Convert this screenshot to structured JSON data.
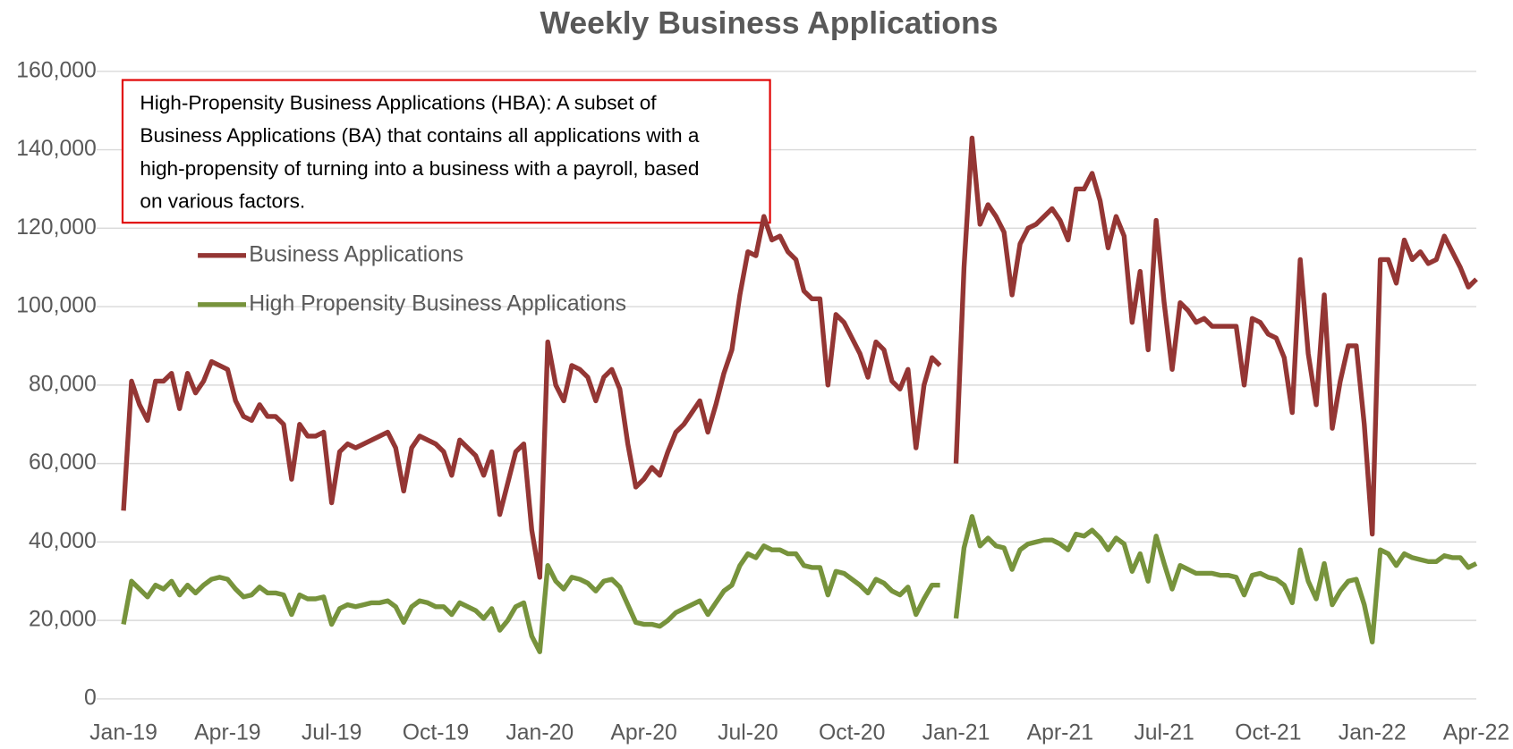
{
  "chart_data": {
    "type": "line",
    "title": "Weekly Business Applications",
    "annotation": [
      "High-Propensity Business Applications (HBA): A subset of",
      "Business Applications (BA) that contains all applications with a",
      "high-propensity of turning into a business with a payroll, based",
      "on various factors."
    ],
    "categories": [
      "Jan-19",
      null,
      null,
      null,
      null,
      null,
      null,
      null,
      null,
      null,
      null,
      null,
      null,
      "Apr-19",
      null,
      null,
      null,
      null,
      null,
      null,
      null,
      null,
      null,
      null,
      null,
      null,
      "Jul-19",
      null,
      null,
      null,
      null,
      null,
      null,
      null,
      null,
      null,
      null,
      null,
      null,
      "Oct-19",
      null,
      null,
      null,
      null,
      null,
      null,
      null,
      null,
      null,
      null,
      null,
      null,
      "Jan-20",
      null,
      null,
      null,
      null,
      null,
      null,
      null,
      null,
      null,
      null,
      null,
      null,
      "Apr-20",
      null,
      null,
      null,
      null,
      null,
      null,
      null,
      null,
      null,
      null,
      null,
      null,
      "Jul-20",
      null,
      null,
      null,
      null,
      null,
      null,
      null,
      null,
      null,
      null,
      null,
      null,
      "Oct-20",
      null,
      null,
      null,
      null,
      null,
      null,
      null,
      null,
      null,
      null,
      null,
      null,
      "Jan-21",
      null,
      null,
      null,
      null,
      null,
      null,
      null,
      null,
      null,
      null,
      null,
      null,
      "Apr-21",
      null,
      null,
      null,
      null,
      null,
      null,
      null,
      null,
      null,
      null,
      null,
      null,
      "Jul-21",
      null,
      null,
      null,
      null,
      null,
      null,
      null,
      null,
      null,
      null,
      null,
      null,
      "Oct-21",
      null,
      null,
      null,
      null,
      null,
      null,
      null,
      null,
      null,
      null,
      null,
      null,
      "Jan-22",
      null,
      null,
      null,
      null,
      null,
      null,
      null,
      null,
      null,
      null,
      null,
      null,
      "Apr-22"
    ],
    "series": [
      {
        "name": "Business Applications",
        "color": "#943634",
        "values": [
          48000,
          81000,
          75000,
          71000,
          81000,
          81000,
          83000,
          74000,
          83000,
          78000,
          81000,
          86000,
          85000,
          84000,
          76000,
          72000,
          71000,
          75000,
          72000,
          72000,
          70000,
          56000,
          70000,
          67000,
          67000,
          68000,
          50000,
          63000,
          65000,
          64000,
          65000,
          66000,
          67000,
          68000,
          64000,
          53000,
          64000,
          67000,
          66000,
          65000,
          63000,
          57000,
          66000,
          64000,
          62000,
          57000,
          63000,
          47000,
          55000,
          63000,
          65000,
          43000,
          31000,
          91000,
          80000,
          76000,
          85000,
          84000,
          82000,
          76000,
          82000,
          84000,
          79000,
          65000,
          54000,
          56000,
          59000,
          57000,
          63000,
          68000,
          70000,
          73000,
          76000,
          68000,
          75000,
          83000,
          89000,
          103000,
          114000,
          113000,
          123000,
          117000,
          118000,
          114000,
          112000,
          104000,
          102000,
          102000,
          80000,
          98000,
          96000,
          92000,
          88000,
          82000,
          91000,
          89000,
          81000,
          79000,
          84000,
          64000,
          80000,
          87000,
          85000,
          null,
          60000,
          110000,
          143000,
          121000,
          126000,
          123000,
          119000,
          103000,
          116000,
          120000,
          121000,
          123000,
          125000,
          122000,
          117000,
          130000,
          130000,
          134000,
          127000,
          115000,
          123000,
          118000,
          96000,
          109000,
          89000,
          122000,
          101000,
          84000,
          101000,
          99000,
          96000,
          97000,
          95000,
          95000,
          95000,
          95000,
          80000,
          97000,
          96000,
          93000,
          92000,
          87000,
          73000,
          112000,
          88000,
          75000,
          103000,
          69000,
          81000,
          90000,
          90000,
          70000,
          42000,
          112000,
          112000,
          106000,
          117000,
          112000,
          114000,
          111000,
          112000,
          118000,
          114000,
          110000,
          105000,
          107000
        ]
      },
      {
        "name": "High Propensity Business Applications",
        "color": "#77933c",
        "values": [
          19000,
          30000,
          28000,
          26000,
          29000,
          28000,
          30000,
          26500,
          29000,
          27000,
          29000,
          30500,
          31000,
          30500,
          28000,
          26000,
          26500,
          28500,
          27000,
          27000,
          26500,
          21500,
          26500,
          25500,
          25500,
          26000,
          19000,
          23000,
          24000,
          23500,
          24000,
          24500,
          24500,
          25000,
          23500,
          19500,
          23500,
          25000,
          24500,
          23500,
          23500,
          21500,
          24500,
          23500,
          22500,
          20500,
          23000,
          17500,
          20000,
          23500,
          24500,
          16000,
          12000,
          34000,
          30000,
          28000,
          31000,
          30500,
          29500,
          27500,
          30000,
          30500,
          28500,
          24000,
          19500,
          19000,
          19000,
          18500,
          20000,
          22000,
          23000,
          24000,
          25000,
          21500,
          24500,
          27500,
          29000,
          34000,
          37000,
          36000,
          39000,
          38000,
          38000,
          37000,
          37000,
          34000,
          33500,
          33500,
          26500,
          32500,
          32000,
          30500,
          29000,
          27000,
          30500,
          29500,
          27500,
          26500,
          28500,
          21500,
          25500,
          29000,
          29000,
          null,
          20500,
          38500,
          46500,
          39000,
          41000,
          39000,
          38500,
          33000,
          38000,
          39500,
          40000,
          40500,
          40500,
          39500,
          38000,
          42000,
          41500,
          43000,
          41000,
          38000,
          41000,
          39500,
          32500,
          37000,
          30000,
          41500,
          34500,
          28000,
          34000,
          33000,
          32000,
          32000,
          32000,
          31500,
          31500,
          31000,
          26500,
          31500,
          32000,
          31000,
          30500,
          29000,
          24500,
          38000,
          30000,
          25500,
          34500,
          24000,
          27500,
          30000,
          30500,
          24000,
          14500,
          38000,
          37000,
          34000,
          37000,
          36000,
          35500,
          35000,
          35000,
          36500,
          36000,
          36000,
          33500,
          34500
        ]
      }
    ],
    "ylim": [
      0,
      160000
    ],
    "yticks": [
      0,
      {
        "value": 20000,
        "label": "20,000"
      },
      {
        "value": 40000,
        "label": "40,000"
      },
      {
        "value": 60000,
        "label": "60,000"
      },
      {
        "value": 80000,
        "label": "80,000"
      },
      {
        "value": 100000,
        "label": "100,000"
      },
      {
        "value": 120000,
        "label": "120,000"
      },
      {
        "value": 140000,
        "label": "140,000"
      },
      {
        "value": 160000,
        "label": "160,000"
      }
    ],
    "grid": true,
    "legend": "upper left"
  }
}
